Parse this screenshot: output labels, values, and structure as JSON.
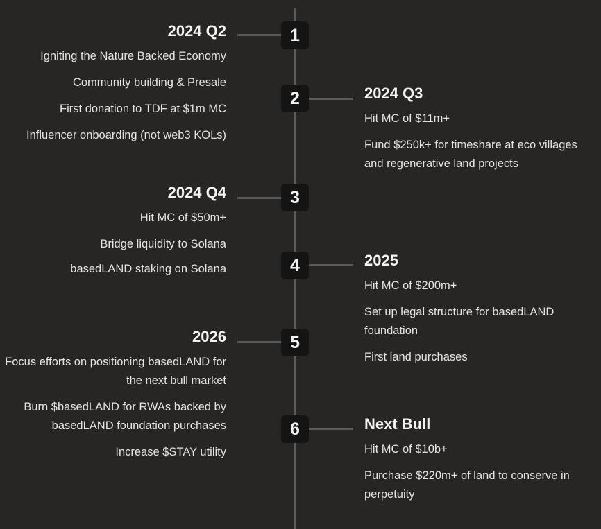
{
  "roadmap": {
    "phases": [
      {
        "number": "1",
        "title": "2024 Q2",
        "items": [
          "Igniting the Nature Backed Economy",
          "Community building & Presale",
          "First donation to TDF at $1m MC",
          "Influencer onboarding (not web3 KOLs)"
        ]
      },
      {
        "number": "2",
        "title": "2024 Q3",
        "items": [
          "Hit MC of $11m+",
          "Fund $250k+ for timeshare at eco villages and regenerative land projects"
        ]
      },
      {
        "number": "3",
        "title": "2024 Q4",
        "items": [
          "Hit MC of $50m+",
          "Bridge liquidity to Solana",
          "basedLAND staking on Solana"
        ]
      },
      {
        "number": "4",
        "title": "2025",
        "items": [
          "Hit MC of $200m+",
          "Set up legal structure for basedLAND foundation",
          "First land purchases"
        ]
      },
      {
        "number": "5",
        "title": "2026",
        "items": [
          "Focus efforts on positioning basedLAND for the next bull market",
          "Burn $basedLAND for RWAs backed by basedLAND foundation purchases",
          "Increase $STAY utility"
        ]
      },
      {
        "number": "6",
        "title": "Next Bull",
        "items": [
          "Hit MC of $10b+",
          "Purchase $220m+ of land to conserve in perpetuity"
        ]
      }
    ]
  }
}
